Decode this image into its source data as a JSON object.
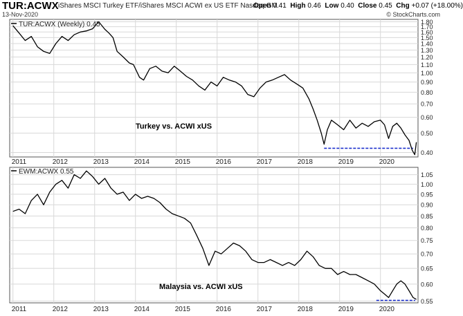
{
  "header": {
    "symbol": "TUR:ACWX",
    "description": "iShares MSCI Turkey ETF/iShares MSCI ACWI ex US ETF  Nasdaq GM",
    "date": "13-Nov-2020",
    "open_label": "Open",
    "open": "0.41",
    "high_label": "High",
    "high": "0.46",
    "low_label": "Low",
    "low": "0.40",
    "close_label": "Close",
    "close": "0.45",
    "chg_label": "Chg",
    "chg": "+0.07 (+18.00%)",
    "credit": "© StockCharts.com"
  },
  "chart_data": [
    {
      "type": "line",
      "legend": "TUR:ACWX (Weekly) 0.45",
      "annotation": "Turkey vs. ACWI xUS",
      "scale": "log",
      "ylim": [
        0.38,
        1.85
      ],
      "xlim": [
        2010.92,
        2020.92
      ],
      "y_ticks": [
        "1.80",
        "1.70",
        "1.60",
        "1.50",
        "1.40",
        "1.30",
        "1.20",
        "1.10",
        "1.00",
        "0.90",
        "0.80",
        "0.70",
        "0.60",
        "0.50",
        "0.40"
      ],
      "x_ticks": [
        "2011",
        "2012",
        "2013",
        "2014",
        "2015",
        "2016",
        "2017",
        "2018",
        "2019",
        "2020"
      ],
      "support_line": {
        "y": 0.42,
        "x_start": 2018.62,
        "x_end": 2020.8,
        "color": "#1a2ecc"
      },
      "x": [
        2011.0,
        2011.15,
        2011.3,
        2011.45,
        2011.6,
        2011.75,
        2011.9,
        2012.05,
        2012.2,
        2012.35,
        2012.5,
        2012.65,
        2012.8,
        2012.95,
        2013.1,
        2013.25,
        2013.35,
        2013.45,
        2013.55,
        2013.7,
        2013.85,
        2013.95,
        2014.1,
        2014.2,
        2014.35,
        2014.5,
        2014.65,
        2014.8,
        2014.95,
        2015.1,
        2015.25,
        2015.4,
        2015.55,
        2015.7,
        2015.85,
        2016.0,
        2016.15,
        2016.3,
        2016.45,
        2016.6,
        2016.75,
        2016.9,
        2017.05,
        2017.2,
        2017.35,
        2017.5,
        2017.65,
        2017.8,
        2017.95,
        2018.1,
        2018.25,
        2018.35,
        2018.45,
        2018.55,
        2018.62,
        2018.7,
        2018.8,
        2018.95,
        2019.1,
        2019.25,
        2019.4,
        2019.55,
        2019.7,
        2019.85,
        2020.0,
        2020.1,
        2020.2,
        2020.3,
        2020.4,
        2020.5,
        2020.6,
        2020.7,
        2020.78,
        2020.84,
        2020.88
      ],
      "values": [
        1.72,
        1.58,
        1.45,
        1.52,
        1.35,
        1.28,
        1.25,
        1.4,
        1.52,
        1.45,
        1.55,
        1.6,
        1.62,
        1.66,
        1.8,
        1.65,
        1.58,
        1.5,
        1.28,
        1.2,
        1.12,
        1.1,
        0.95,
        0.92,
        1.05,
        1.08,
        1.02,
        1.0,
        1.08,
        1.02,
        0.96,
        0.92,
        0.86,
        0.82,
        0.9,
        0.86,
        0.95,
        0.92,
        0.9,
        0.86,
        0.78,
        0.76,
        0.84,
        0.9,
        0.92,
        0.95,
        0.98,
        0.92,
        0.88,
        0.84,
        0.74,
        0.66,
        0.58,
        0.5,
        0.44,
        0.52,
        0.58,
        0.55,
        0.52,
        0.58,
        0.53,
        0.56,
        0.54,
        0.57,
        0.58,
        0.55,
        0.47,
        0.54,
        0.56,
        0.53,
        0.49,
        0.46,
        0.41,
        0.39,
        0.45
      ]
    },
    {
      "type": "line",
      "legend": "EWM:ACWX 0.55",
      "annotation": "Malaysia vs. ACWI xUS",
      "scale": "log",
      "ylim": [
        0.545,
        1.09
      ],
      "xlim": [
        2010.92,
        2020.92
      ],
      "y_ticks": [
        "1.05",
        "1.00",
        "0.95",
        "0.90",
        "0.85",
        "0.80",
        "0.75",
        "0.70",
        "0.65",
        "0.60",
        "0.55"
      ],
      "x_ticks": [
        "2011",
        "2012",
        "2013",
        "2014",
        "2015",
        "2016",
        "2017",
        "2018",
        "2019",
        "2020"
      ],
      "support_line": {
        "y": 0.552,
        "x_start": 2019.9,
        "x_end": 2020.85,
        "color": "#1a2ecc"
      },
      "x": [
        2011.0,
        2011.15,
        2011.3,
        2011.45,
        2011.6,
        2011.75,
        2011.9,
        2012.05,
        2012.2,
        2012.35,
        2012.5,
        2012.65,
        2012.8,
        2012.95,
        2013.1,
        2013.25,
        2013.4,
        2013.55,
        2013.7,
        2013.85,
        2014.0,
        2014.15,
        2014.3,
        2014.45,
        2014.6,
        2014.75,
        2014.9,
        2015.05,
        2015.2,
        2015.35,
        2015.5,
        2015.65,
        2015.8,
        2015.95,
        2016.1,
        2016.25,
        2016.4,
        2016.55,
        2016.7,
        2016.85,
        2017.0,
        2017.15,
        2017.3,
        2017.45,
        2017.6,
        2017.75,
        2017.9,
        2018.05,
        2018.2,
        2018.35,
        2018.5,
        2018.65,
        2018.8,
        2018.95,
        2019.1,
        2019.25,
        2019.4,
        2019.55,
        2019.7,
        2019.85,
        2020.0,
        2020.1,
        2020.2,
        2020.3,
        2020.4,
        2020.5,
        2020.6,
        2020.7,
        2020.8,
        2020.88
      ],
      "values": [
        0.87,
        0.88,
        0.86,
        0.92,
        0.95,
        0.9,
        0.96,
        1.0,
        1.02,
        0.98,
        1.05,
        1.03,
        1.07,
        1.04,
        1.0,
        1.03,
        0.98,
        0.95,
        0.96,
        0.92,
        0.95,
        0.93,
        0.94,
        0.93,
        0.91,
        0.88,
        0.86,
        0.85,
        0.84,
        0.82,
        0.77,
        0.72,
        0.66,
        0.71,
        0.7,
        0.72,
        0.74,
        0.73,
        0.71,
        0.68,
        0.67,
        0.67,
        0.68,
        0.67,
        0.66,
        0.67,
        0.66,
        0.68,
        0.71,
        0.69,
        0.66,
        0.65,
        0.65,
        0.63,
        0.64,
        0.63,
        0.63,
        0.62,
        0.61,
        0.6,
        0.58,
        0.57,
        0.56,
        0.58,
        0.6,
        0.61,
        0.6,
        0.58,
        0.56,
        0.555
      ]
    }
  ]
}
